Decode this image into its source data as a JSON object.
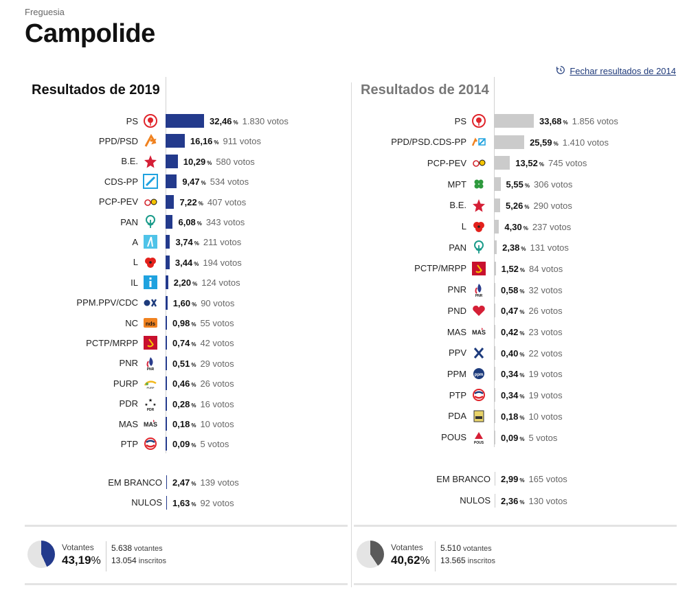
{
  "header": {
    "subtitle": "Freguesia",
    "title": "Campolide"
  },
  "close_link": {
    "label": "Fechar resultados de 2014",
    "icon": "history-icon"
  },
  "colors": {
    "bar_2019": "#233a8c",
    "bar_2014": "#cbcbcb",
    "link": "#1f3a7a"
  },
  "percent_sign": "%",
  "left": {
    "title": "Resultados de 2019",
    "parties": [
      {
        "name": "PS",
        "pct": "32,46",
        "votes": "1.830 votos",
        "icon": "ps-rose-icon",
        "value": 32.46
      },
      {
        "name": "PPD/PSD",
        "pct": "16,16",
        "votes": "911 votos",
        "icon": "psd-arrow-icon",
        "value": 16.16
      },
      {
        "name": "B.E.",
        "pct": "10,29",
        "votes": "580 votos",
        "icon": "be-star-icon",
        "value": 10.29
      },
      {
        "name": "CDS-PP",
        "pct": "9,47",
        "votes": "534 votos",
        "icon": "cds-icon",
        "value": 9.47
      },
      {
        "name": "PCP-PEV",
        "pct": "7,22",
        "votes": "407 votos",
        "icon": "cdu-icon",
        "value": 7.22
      },
      {
        "name": "PAN",
        "pct": "6,08",
        "votes": "343 votos",
        "icon": "pan-tree-icon",
        "value": 6.08
      },
      {
        "name": "A",
        "pct": "3,74",
        "votes": "211 votos",
        "icon": "alianca-icon",
        "value": 3.74
      },
      {
        "name": "L",
        "pct": "3,44",
        "votes": "194 votos",
        "icon": "livre-poppy-icon",
        "value": 3.44
      },
      {
        "name": "IL",
        "pct": "2,20",
        "votes": "124 votos",
        "icon": "il-icon",
        "value": 2.2
      },
      {
        "name": "PPM.PPV/CDC",
        "pct": "1,60",
        "votes": "90 votos",
        "icon": "ppm-ppv-icon",
        "value": 1.6
      },
      {
        "name": "NC",
        "pct": "0,98",
        "votes": "55 votos",
        "icon": "nc-icon",
        "value": 0.98
      },
      {
        "name": "PCTP/MRPP",
        "pct": "0,74",
        "votes": "42 votos",
        "icon": "mrpp-hammer-sickle-icon",
        "value": 0.74
      },
      {
        "name": "PNR",
        "pct": "0,51",
        "votes": "29 votos",
        "icon": "pnr-flame-icon",
        "value": 0.51
      },
      {
        "name": "PURP",
        "pct": "0,46",
        "votes": "26 votos",
        "icon": "purp-icon",
        "value": 0.46
      },
      {
        "name": "PDR",
        "pct": "0,28",
        "votes": "16 votos",
        "icon": "pdr-stars-icon",
        "value": 0.28
      },
      {
        "name": "MAS",
        "pct": "0,18",
        "votes": "10 votos",
        "icon": "mas-icon",
        "value": 0.18
      },
      {
        "name": "PTP",
        "pct": "0,09",
        "votes": "5 votos",
        "icon": "ptp-icon",
        "value": 0.09
      }
    ],
    "blank": {
      "name": "EM BRANCO",
      "pct": "2,47",
      "votes": "139 votos",
      "value": 2.47
    },
    "null": {
      "name": "NULOS",
      "pct": "1,63",
      "votes": "92 votos",
      "value": 1.63
    },
    "turnout": {
      "label": "Votantes",
      "pct": "43,19",
      "value": 43.19,
      "voters": "5.638",
      "voters_label": "votantes",
      "registered": "13.054",
      "registered_label": "inscritos"
    }
  },
  "right": {
    "title": "Resultados de 2014",
    "parties": [
      {
        "name": "PS",
        "pct": "33,68",
        "votes": "1.856 votos",
        "icon": "ps-rose-icon",
        "value": 33.68
      },
      {
        "name": "PPD/PSD.CDS-PP",
        "pct": "25,59",
        "votes": "1.410 votos",
        "icon": "psd-cds-icon",
        "value": 25.59
      },
      {
        "name": "PCP-PEV",
        "pct": "13,52",
        "votes": "745 votos",
        "icon": "cdu-icon",
        "value": 13.52
      },
      {
        "name": "MPT",
        "pct": "5,55",
        "votes": "306 votos",
        "icon": "mpt-clover-icon",
        "value": 5.55
      },
      {
        "name": "B.E.",
        "pct": "5,26",
        "votes": "290 votos",
        "icon": "be-star-icon",
        "value": 5.26
      },
      {
        "name": "L",
        "pct": "4,30",
        "votes": "237 votos",
        "icon": "livre-poppy-icon",
        "value": 4.3
      },
      {
        "name": "PAN",
        "pct": "2,38",
        "votes": "131 votos",
        "icon": "pan-tree-icon",
        "value": 2.38
      },
      {
        "name": "PCTP/MRPP",
        "pct": "1,52",
        "votes": "84 votos",
        "icon": "mrpp-hammer-sickle-icon",
        "value": 1.52
      },
      {
        "name": "PNR",
        "pct": "0,58",
        "votes": "32 votos",
        "icon": "pnr-flame-icon",
        "value": 0.58
      },
      {
        "name": "PND",
        "pct": "0,47",
        "votes": "26 votos",
        "icon": "pnd-heart-icon",
        "value": 0.47
      },
      {
        "name": "MAS",
        "pct": "0,42",
        "votes": "23 votos",
        "icon": "mas-icon",
        "value": 0.42
      },
      {
        "name": "PPV",
        "pct": "0,40",
        "votes": "22 votos",
        "icon": "ppv-icon",
        "value": 0.4
      },
      {
        "name": "PPM",
        "pct": "0,34",
        "votes": "19 votos",
        "icon": "ppm-icon",
        "value": 0.34
      },
      {
        "name": "PTP",
        "pct": "0,34",
        "votes": "19 votos",
        "icon": "ptp-icon",
        "value": 0.34
      },
      {
        "name": "PDA",
        "pct": "0,18",
        "votes": "10 votos",
        "icon": "pda-icon",
        "value": 0.18
      },
      {
        "name": "POUS",
        "pct": "0,09",
        "votes": "5 votos",
        "icon": "pous-icon",
        "value": 0.09
      }
    ],
    "blank": {
      "name": "EM BRANCO",
      "pct": "2,99",
      "votes": "165 votos",
      "value": 2.99
    },
    "null": {
      "name": "NULOS",
      "pct": "2,36",
      "votes": "130 votos",
      "value": 2.36
    },
    "turnout": {
      "label": "Votantes",
      "pct": "40,62",
      "value": 40.62,
      "voters": "5.510",
      "voters_label": "votantes",
      "registered": "13.565",
      "registered_label": "inscritos"
    }
  }
}
